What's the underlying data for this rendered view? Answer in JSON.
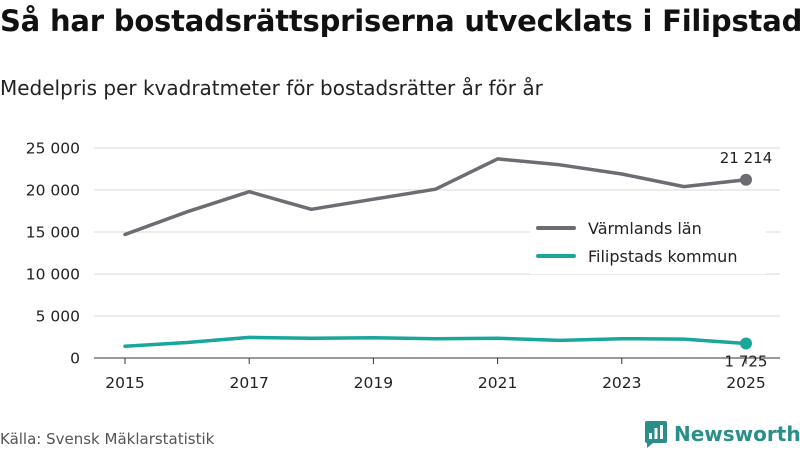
{
  "header": {
    "title": "Så har bostadsrättspriserna utvecklats i Filipstad",
    "subtitle": "Medelpris per kvadratmeter för bostadsrätter år för år"
  },
  "footer": {
    "source": "Källa: Svensk Mäklarstatistik",
    "brand": "Newsworthy"
  },
  "chart_data": {
    "type": "line",
    "title": "Så har bostadsrättspriserna utvecklats i Filipstad",
    "subtitle": "Medelpris per kvadratmeter för bostadsrätter år för år",
    "xlabel": "",
    "ylabel": "",
    "x": [
      2015,
      2016,
      2017,
      2018,
      2019,
      2020,
      2021,
      2022,
      2023,
      2024,
      2025
    ],
    "x_ticks": [
      "2015",
      "2017",
      "2019",
      "2021",
      "2023",
      "2025"
    ],
    "y_ticks": [
      "0",
      "5 000",
      "10 000",
      "15 000",
      "20 000",
      "25 000"
    ],
    "y_tick_values": [
      0,
      5000,
      10000,
      15000,
      20000,
      25000
    ],
    "ylim": [
      0,
      25000
    ],
    "grid": true,
    "legend_position": "right",
    "series": [
      {
        "name": "Värmlands län",
        "color": "#6d6c72",
        "values": [
          14700,
          17400,
          19800,
          17700,
          18900,
          20100,
          23700,
          23000,
          21900,
          20400,
          21214
        ],
        "end_label": "21 214"
      },
      {
        "name": "Filipstads kommun",
        "color": "#1aa79b",
        "values": [
          1400,
          1850,
          2450,
          2350,
          2400,
          2300,
          2350,
          2100,
          2300,
          2250,
          1725
        ],
        "end_label": "1 725"
      }
    ]
  }
}
